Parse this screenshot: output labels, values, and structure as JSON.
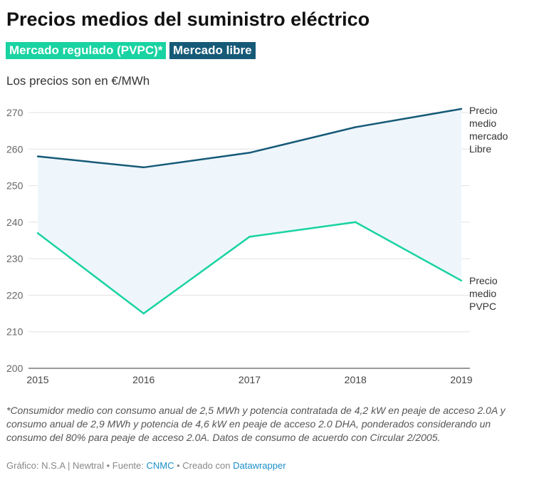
{
  "title": "Precios medios del suministro eléctrico",
  "subtitle": "Los precios son en €/MWh",
  "legend": [
    {
      "label": "Mercado regulado (PVPC)*",
      "color": "#19d3a2"
    },
    {
      "label": "Mercado libre",
      "color": "#165a78"
    }
  ],
  "chart_data": {
    "type": "line",
    "x": [
      2015,
      2016,
      2017,
      2018,
      2019
    ],
    "xticks": [
      "2015",
      "2016",
      "2017",
      "2018",
      "2019"
    ],
    "yticks": [
      "270",
      "260",
      "250",
      "240",
      "230",
      "220",
      "210",
      "200"
    ],
    "ylim": [
      200,
      270
    ],
    "grid": true,
    "series": [
      {
        "name": "Mercado libre",
        "values": [
          258,
          255,
          259,
          266,
          271
        ],
        "color": "#165a78",
        "label": [
          "Precio",
          "medio",
          "mercado",
          "Libre"
        ]
      },
      {
        "name": "Mercado regulado (PVPC)",
        "values": [
          237,
          215,
          236,
          240,
          224
        ],
        "color": "#19d3a2",
        "label": [
          "Precio",
          "medio",
          "PVPC"
        ]
      }
    ],
    "area_fill": "#eef6fb"
  },
  "note": "*Consumidor medio con consumo anual de 2,5 MWh y potencia contratada de 4,2 kW en peaje de acceso 2.0A y consumo anual de 2,9 MWh y potencia de 4,6 kW en peaje de acceso 2.0 DHA, ponderados considerando un consumo del 80% para peaje de acceso 2.0A. Datos de consumo de acuerdo con Circular 2/2005.",
  "footer": {
    "prefix": "Gráfico: N.S.A | Newtral • Fuente: ",
    "source": "CNMC",
    "mid": " • Creado con ",
    "tool": "Datawrapper"
  }
}
